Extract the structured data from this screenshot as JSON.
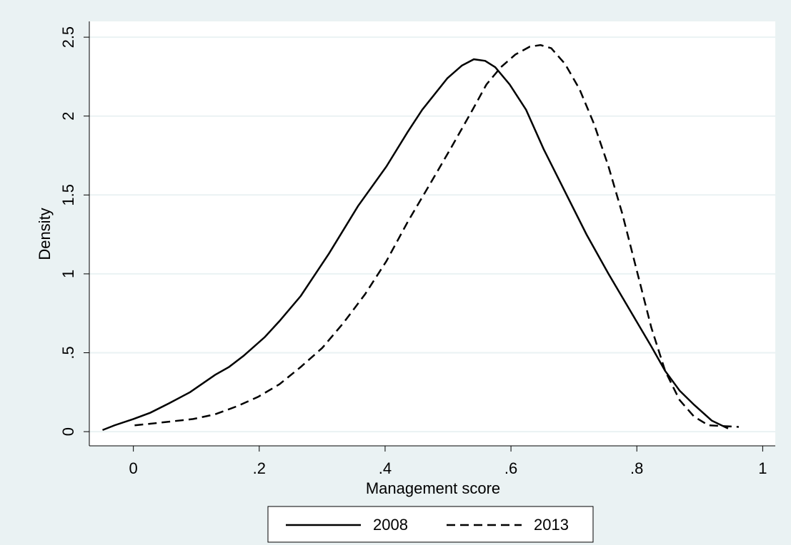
{
  "chart_data": {
    "type": "line",
    "xlabel": "Management score",
    "ylabel": "Density",
    "xlim": [
      -0.07,
      1.02
    ],
    "ylim": [
      -0.09,
      2.6
    ],
    "xticks": [
      0,
      {
        "value": 0.2,
        "label": ".2"
      },
      {
        "value": 0.4,
        "label": ".4"
      },
      {
        "value": 0.6,
        "label": ".6"
      },
      {
        "value": 0.8,
        "label": ".8"
      },
      1
    ],
    "yticks": [
      0,
      {
        "value": 0.5,
        "label": ".5"
      },
      1,
      1.5,
      2,
      2.5
    ],
    "grid": true,
    "legend": "bottom",
    "series": [
      {
        "name": "2008",
        "color": "#000000",
        "line_style": "solid",
        "x": [
          -0.049,
          -0.03,
          0,
          0.027,
          0.057,
          0.09,
          0.13,
          0.152,
          0.175,
          0.209,
          0.232,
          0.266,
          0.311,
          0.357,
          0.402,
          0.436,
          0.459,
          0.499,
          0.522,
          0.541,
          0.559,
          0.575,
          0.598,
          0.624,
          0.652,
          0.686,
          0.72,
          0.755,
          0.789,
          0.823,
          0.845,
          0.868,
          0.891,
          0.919,
          0.945
        ],
        "values": [
          0.01,
          0.04,
          0.08,
          0.12,
          0.18,
          0.25,
          0.36,
          0.41,
          0.48,
          0.6,
          0.7,
          0.86,
          1.13,
          1.43,
          1.68,
          1.9,
          2.04,
          2.24,
          2.32,
          2.36,
          2.35,
          2.31,
          2.2,
          2.04,
          1.79,
          1.52,
          1.25,
          1.0,
          0.77,
          0.54,
          0.385,
          0.26,
          0.17,
          0.07,
          0.02
        ]
      },
      {
        "name": "2013",
        "color": "#000000",
        "line_style": "dashed",
        "x": [
          0.002,
          0.027,
          0.061,
          0.095,
          0.13,
          0.164,
          0.198,
          0.232,
          0.266,
          0.3,
          0.334,
          0.368,
          0.402,
          0.436,
          0.47,
          0.505,
          0.539,
          0.561,
          0.584,
          0.607,
          0.63,
          0.647,
          0.664,
          0.686,
          0.709,
          0.732,
          0.755,
          0.777,
          0.8,
          0.823,
          0.845,
          0.868,
          0.891,
          0.914,
          0.962
        ],
        "values": [
          0.04,
          0.05,
          0.065,
          0.08,
          0.11,
          0.16,
          0.22,
          0.3,
          0.41,
          0.53,
          0.69,
          0.87,
          1.08,
          1.33,
          1.56,
          1.8,
          2.04,
          2.2,
          2.31,
          2.39,
          2.44,
          2.45,
          2.43,
          2.33,
          2.17,
          1.95,
          1.68,
          1.38,
          1.02,
          0.66,
          0.385,
          0.2,
          0.095,
          0.04,
          0.03
        ]
      }
    ]
  }
}
